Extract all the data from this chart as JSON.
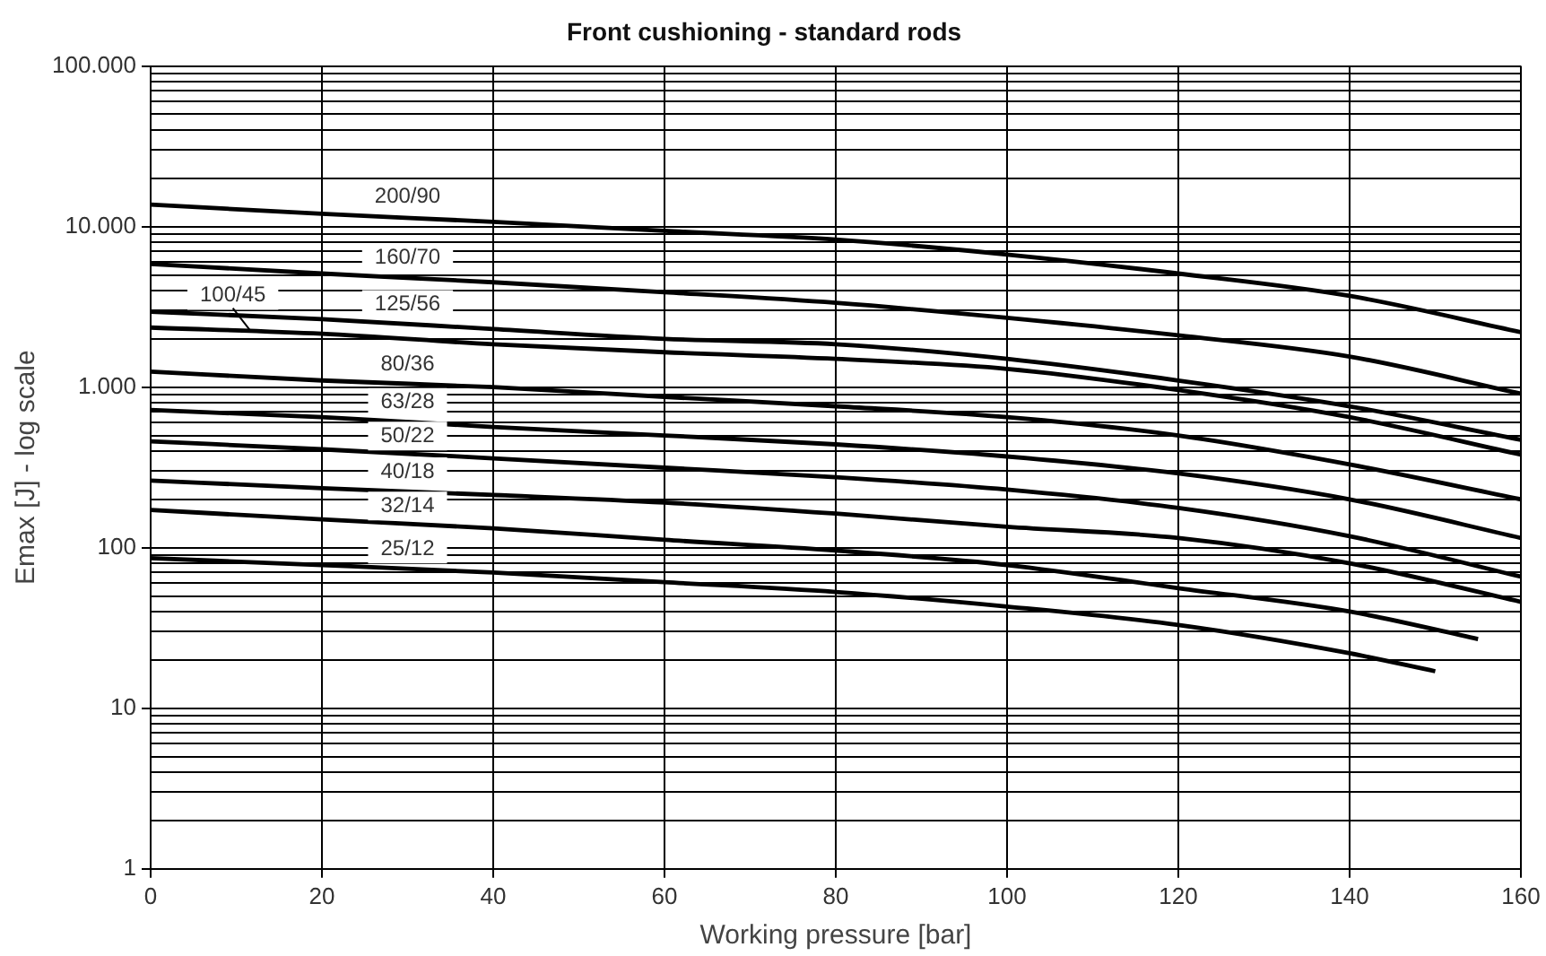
{
  "chart_data": {
    "type": "line",
    "title": "Front cushioning - standard rods",
    "xlabel": "Working pressure [bar]",
    "ylabel": "Emax [J] - log scale",
    "log": "y",
    "grid": true,
    "legend": false,
    "marker": "none",
    "line_style": "solid",
    "xlim": [
      0,
      160
    ],
    "xticks": [
      0,
      20,
      40,
      60,
      80,
      100,
      120,
      140,
      160
    ],
    "ylim": [
      1,
      100000
    ],
    "yticks": [
      {
        "value": 1,
        "label": "1"
      },
      {
        "value": 2,
        "label": null
      },
      {
        "value": 3,
        "label": null
      },
      {
        "value": 4,
        "label": null
      },
      {
        "value": 5,
        "label": null
      },
      {
        "value": 6,
        "label": null
      },
      {
        "value": 7,
        "label": null
      },
      {
        "value": 8,
        "label": null
      },
      {
        "value": 9,
        "label": null
      },
      {
        "value": 10,
        "label": "10"
      },
      {
        "value": 20,
        "label": null
      },
      {
        "value": 30,
        "label": null
      },
      {
        "value": 40,
        "label": null
      },
      {
        "value": 50,
        "label": null
      },
      {
        "value": 60,
        "label": null
      },
      {
        "value": 70,
        "label": null
      },
      {
        "value": 80,
        "label": null
      },
      {
        "value": 90,
        "label": null
      },
      {
        "value": 100,
        "label": "100"
      },
      {
        "value": 200,
        "label": null
      },
      {
        "value": 300,
        "label": null
      },
      {
        "value": 400,
        "label": null
      },
      {
        "value": 500,
        "label": null
      },
      {
        "value": 600,
        "label": null
      },
      {
        "value": 700,
        "label": null
      },
      {
        "value": 800,
        "label": null
      },
      {
        "value": 900,
        "label": null
      },
      {
        "value": 1000,
        "label": "1.000"
      },
      {
        "value": 2000,
        "label": null
      },
      {
        "value": 3000,
        "label": null
      },
      {
        "value": 4000,
        "label": null
      },
      {
        "value": 5000,
        "label": null
      },
      {
        "value": 6000,
        "label": null
      },
      {
        "value": 7000,
        "label": null
      },
      {
        "value": 8000,
        "label": null
      },
      {
        "value": 9000,
        "label": null
      },
      {
        "value": 10000,
        "label": "10.000"
      },
      {
        "value": 20000,
        "label": null
      },
      {
        "value": 30000,
        "label": null
      },
      {
        "value": 40000,
        "label": null
      },
      {
        "value": 50000,
        "label": null
      },
      {
        "value": 60000,
        "label": null
      },
      {
        "value": 70000,
        "label": null
      },
      {
        "value": 80000,
        "label": null
      },
      {
        "value": 90000,
        "label": null
      },
      {
        "value": 100000,
        "label": "100.000"
      }
    ],
    "x": [
      0,
      20,
      40,
      60,
      80,
      100,
      120,
      140,
      160
    ],
    "series": [
      {
        "name": "200/90",
        "color": "#000000",
        "values": [
          13700,
          12000,
          10700,
          9400,
          8300,
          6700,
          5100,
          3700,
          2200
        ]
      },
      {
        "name": "160/70",
        "color": "#000000",
        "values": [
          5850,
          5100,
          4500,
          3900,
          3350,
          2700,
          2100,
          1550,
          910
        ]
      },
      {
        "name": "125/56",
        "color": "#000000",
        "values": [
          2950,
          2650,
          2300,
          2000,
          1850,
          1500,
          1100,
          760,
          470
        ]
      },
      {
        "name": "100/45",
        "color": "#000000",
        "values": [
          2350,
          2150,
          1850,
          1650,
          1500,
          1300,
          960,
          650,
          380
        ]
      },
      {
        "name": "80/36",
        "color": "#000000",
        "values": [
          1250,
          1100,
          1000,
          870,
          760,
          650,
          500,
          330,
          200
        ]
      },
      {
        "name": "63/28",
        "color": "#000000",
        "values": [
          720,
          650,
          565,
          500,
          440,
          370,
          290,
          200,
          115
        ]
      },
      {
        "name": "50/22",
        "color": "#000000",
        "values": [
          460,
          410,
          360,
          315,
          275,
          230,
          177,
          118,
          66
        ]
      },
      {
        "name": "40/18",
        "color": "#000000",
        "values": [
          262,
          235,
          213,
          191,
          163,
          135,
          115,
          80,
          46
        ]
      },
      {
        "name": "32/14",
        "x": [
          0,
          20,
          40,
          60,
          80,
          100,
          120,
          140,
          155
        ],
        "color": "#000000",
        "values": [
          172,
          150,
          132,
          112,
          96,
          78,
          56,
          40,
          27
        ]
      },
      {
        "name": "25/12",
        "x": [
          0,
          20,
          40,
          60,
          80,
          100,
          120,
          140,
          150
        ],
        "color": "#000000",
        "values": [
          86,
          78,
          70,
          61,
          53,
          43,
          33,
          22,
          17
        ]
      }
    ]
  }
}
